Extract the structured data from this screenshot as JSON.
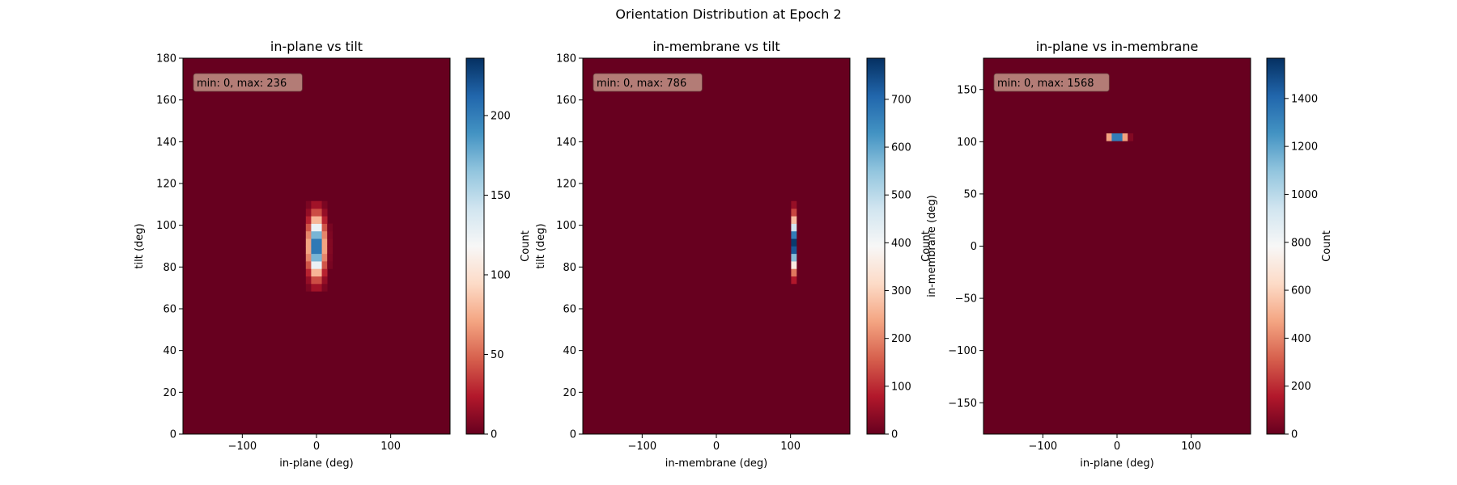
{
  "figure_title": "Orientation Distribution at Epoch 2",
  "colors": {
    "colormap": "RdBu",
    "colormap_stops": [
      "#67001f",
      "#b2182b",
      "#d6604d",
      "#f4a582",
      "#fddbc7",
      "#f7f7f7",
      "#d1e5f0",
      "#92c5de",
      "#4393c3",
      "#2166ac",
      "#053061"
    ],
    "annotation_bg": "#bc8a80",
    "axis_color": "#000000"
  },
  "chart_data": [
    {
      "type": "heatmap",
      "title": "in-plane vs tilt",
      "xlabel": "in-plane (deg)",
      "ylabel": "tilt (deg)",
      "xlim": [
        -180,
        180
      ],
      "ylim": [
        0,
        180
      ],
      "xticks": [
        -100,
        0,
        100
      ],
      "yticks": [
        0,
        20,
        40,
        60,
        80,
        100,
        120,
        140,
        160,
        180
      ],
      "annotation": "min: 0, max: 236",
      "min": 0,
      "max": 236,
      "colorbar": {
        "label": "Count",
        "ticks": [
          0,
          50,
          100,
          150,
          200
        ],
        "range": [
          0,
          236
        ]
      },
      "bins": {
        "x_edges_step": 7.2,
        "y_edges_step": 3.6
      },
      "hotspot": {
        "x_center": 0,
        "y_center": 90,
        "x_sigma": 7,
        "y_sigma": 9,
        "x_extent": 18,
        "y_extent": 21,
        "peak": 236
      }
    },
    {
      "type": "heatmap",
      "title": "in-membrane vs tilt",
      "xlabel": "in-membrane (deg)",
      "ylabel": "tilt (deg)",
      "xlim": [
        -180,
        180
      ],
      "ylim": [
        0,
        180
      ],
      "xticks": [
        -100,
        0,
        100
      ],
      "yticks": [
        0,
        20,
        40,
        60,
        80,
        100,
        120,
        140,
        160,
        180
      ],
      "annotation": "min: 0, max: 786",
      "min": 0,
      "max": 786,
      "colorbar": {
        "label": "Count",
        "ticks": [
          0,
          100,
          200,
          300,
          400,
          500,
          600,
          700
        ],
        "range": [
          0,
          786
        ]
      },
      "bins": {
        "x_edges_step": 7.2,
        "y_edges_step": 3.6
      },
      "hotspot": {
        "x_center": 104,
        "y_center": 91,
        "x_sigma": 2.5,
        "y_sigma": 8,
        "x_extent": 5,
        "y_extent": 20,
        "peak": 786
      }
    },
    {
      "type": "heatmap",
      "title": "in-plane vs in-membrane",
      "xlabel": "in-plane (deg)",
      "ylabel": "in-membrane (deg)",
      "xlim": [
        -180,
        180
      ],
      "ylim": [
        -180,
        180
      ],
      "xticks": [
        -100,
        0,
        100
      ],
      "yticks": [
        -150,
        -100,
        -50,
        0,
        50,
        100,
        150
      ],
      "annotation": "min: 0, max: 1568",
      "min": 0,
      "max": 1568,
      "colorbar": {
        "label": "Count",
        "ticks": [
          0,
          200,
          400,
          600,
          800,
          1000,
          1200,
          1400
        ],
        "range": [
          0,
          1568
        ]
      },
      "bins": {
        "x_edges_step": 7.2,
        "y_edges_step": 7.2
      },
      "hotspot": {
        "x_center": 0,
        "y_center": 105,
        "x_sigma": 7,
        "y_sigma": 2.5,
        "x_extent": 18,
        "y_extent": 5,
        "peak": 1568
      }
    }
  ]
}
